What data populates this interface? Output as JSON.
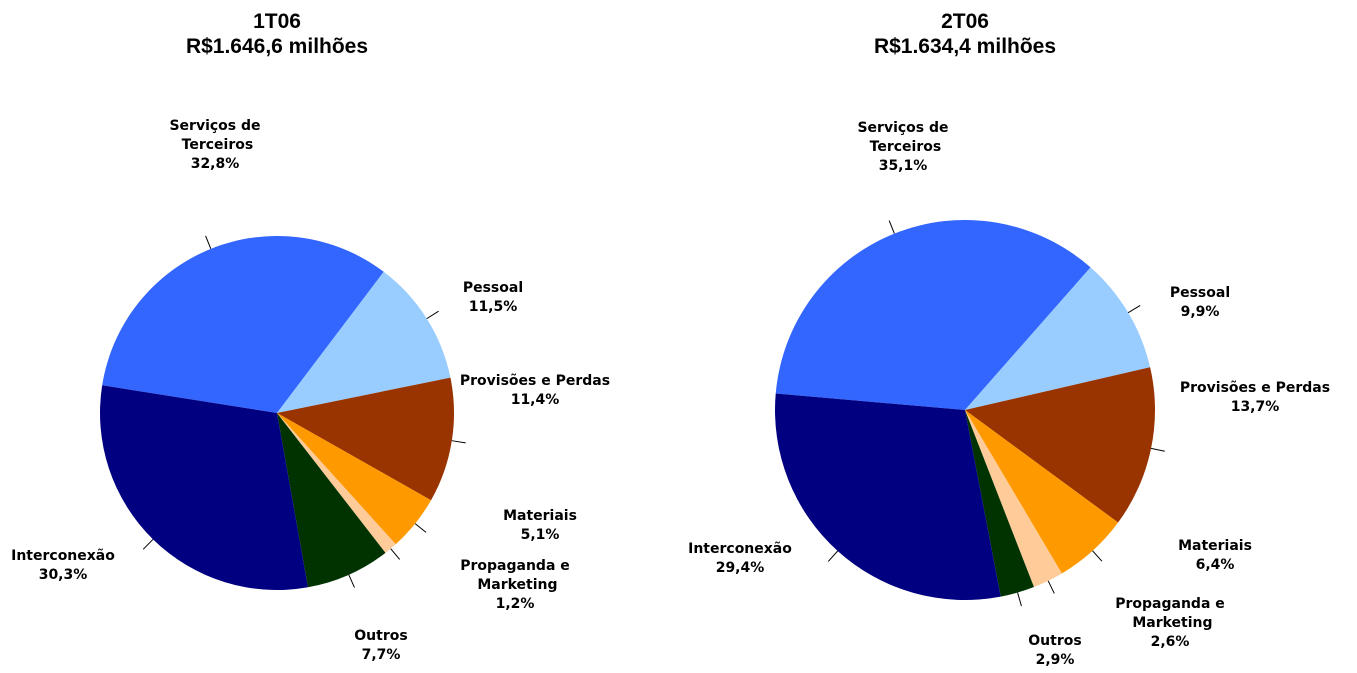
{
  "chart_data": [
    {
      "type": "pie",
      "title": "1T06",
      "subtitle": "R$1.646,6 milhões",
      "categories": [
        "Serviços de Terceiros",
        "Pessoal",
        "Provisões e Perdas",
        "Materiais",
        "Propaganda e Marketing",
        "Outros",
        "Interconexão"
      ],
      "values": [
        32.8,
        11.5,
        11.4,
        5.1,
        1.2,
        7.7,
        30.3
      ],
      "value_labels": [
        "32,8%",
        "11,5%",
        "11,4%",
        "5,1%",
        "1,2%",
        "7,7%",
        "30,3%"
      ],
      "colors": [
        "#3366ff",
        "#99ccff",
        "#993300",
        "#ff9900",
        "#ffcc99",
        "#003300",
        "#000080"
      ]
    },
    {
      "type": "pie",
      "title": "2T06",
      "subtitle": "R$1.634,4 milhões",
      "categories": [
        "Serviços de Terceiros",
        "Pessoal",
        "Provisões e Perdas",
        "Materiais",
        "Propaganda e Marketing",
        "Outros",
        "Interconexão"
      ],
      "values": [
        35.1,
        9.9,
        13.7,
        6.4,
        2.6,
        2.9,
        29.4
      ],
      "value_labels": [
        "35,1%",
        "9,9%",
        "13,7%",
        "6,4%",
        "2,6%",
        "2,9%",
        "29,4%"
      ],
      "colors": [
        "#3366ff",
        "#99ccff",
        "#993300",
        "#ff9900",
        "#ffcc99",
        "#003300",
        "#000080"
      ]
    }
  ]
}
